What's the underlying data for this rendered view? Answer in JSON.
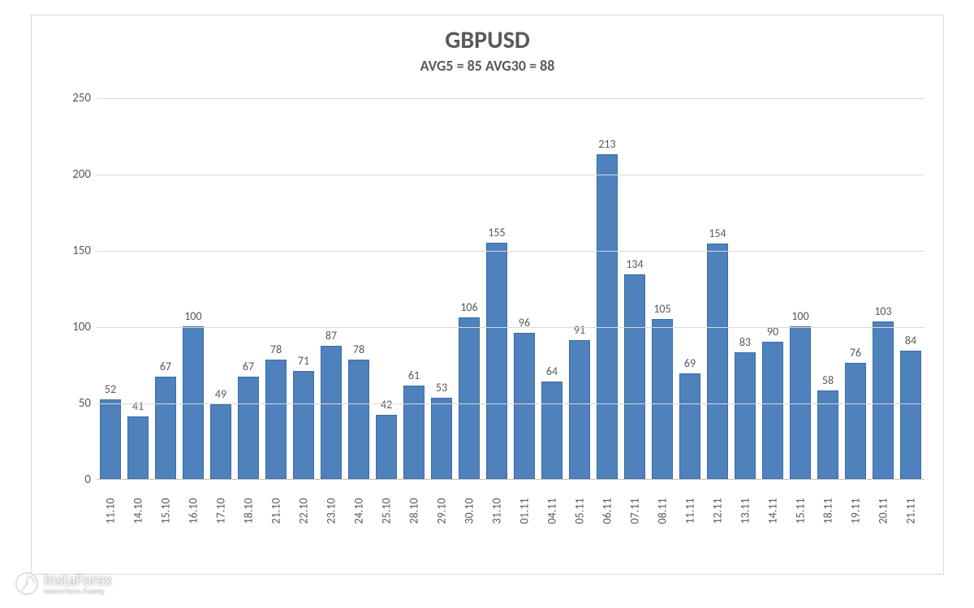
{
  "chart": {
    "type": "bar",
    "title": "GBPUSD",
    "subtitle": "AVG5 = 85 AVG30 = 88",
    "title_fontsize": 30,
    "subtitle_fontsize": 18,
    "title_color": "#595959",
    "categories": [
      "11.10",
      "14.10",
      "15.10",
      "16.10",
      "17.10",
      "18.10",
      "21.10",
      "22.10",
      "23.10",
      "24.10",
      "25.10",
      "28.10",
      "29.10",
      "30.10",
      "31.10",
      "01.11",
      "04.11",
      "05.11",
      "06.11",
      "07.11",
      "08.11",
      "11.11",
      "12.11",
      "13.11",
      "14.11",
      "15.11",
      "18.11",
      "19.11",
      "20.11",
      "21.11"
    ],
    "values": [
      52,
      41,
      67,
      100,
      49,
      67,
      78,
      71,
      87,
      78,
      42,
      61,
      53,
      106,
      155,
      96,
      64,
      91,
      213,
      134,
      105,
      69,
      154,
      83,
      90,
      100,
      58,
      76,
      103,
      84
    ],
    "bar_color": "#4f81bd",
    "bar_border_color": "#3a6da3",
    "bar_width": 0.76,
    "background_color": "#ffffff",
    "grid_color": "#d9d9d9",
    "axis_color": "#bfbfbf",
    "text_color": "#595959",
    "label_fontsize": 15,
    "data_label_fontsize": 14,
    "x_label_fontsize": 14,
    "ylim": [
      0,
      250
    ],
    "ytick_step": 50,
    "yticks": [
      0,
      50,
      100,
      150,
      200,
      250
    ],
    "x_label_rotation": -90,
    "container_border_color": "#d9d9d9"
  },
  "watermark": {
    "brand": "InstaForex",
    "tagline": "Instant Forex Trading",
    "icon_name": "instaforex-logo-icon",
    "icon_svg_color": "#ffffff",
    "text_color": "#f5f5f5"
  }
}
